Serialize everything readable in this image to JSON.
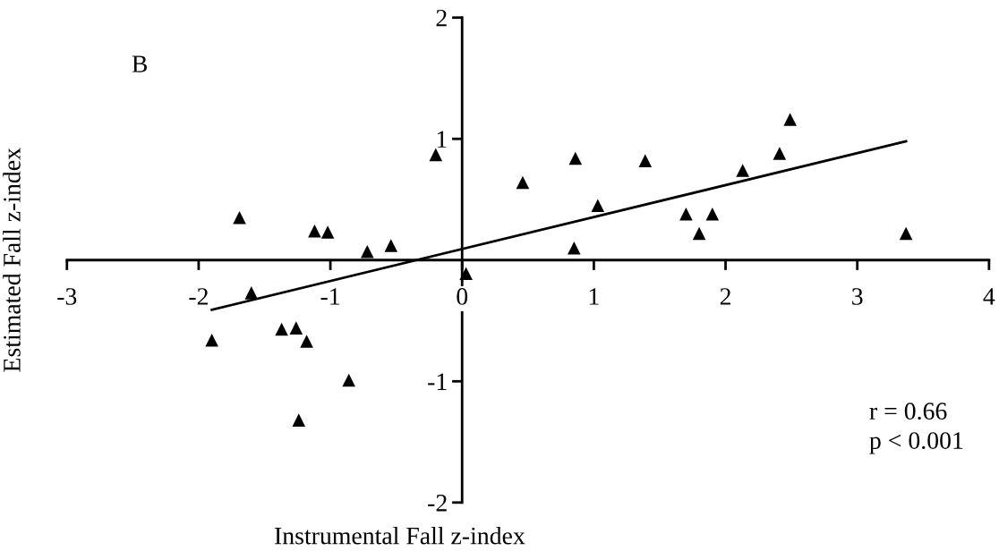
{
  "chart_data": {
    "type": "scatter",
    "xlabel": "Instrumental Fall z-index",
    "ylabel": "Estimated Fall z-index",
    "annotations": [
      "B",
      "r = 0.66\np < 0.001"
    ],
    "series": [
      {
        "color": "#000000",
        "marker": "triangle",
        "x": [
          -1.69,
          -1.12,
          -1.02,
          -0.72,
          -0.54,
          -0.2,
          0.46,
          0.85,
          0.03,
          -1.6,
          -1.9,
          -1.37,
          -1.26,
          -1.18,
          -0.86,
          -1.24,
          0.86,
          1.03,
          1.39,
          1.7,
          1.9,
          1.8,
          2.13,
          2.41,
          2.49,
          3.37
        ],
        "values": [
          0.35,
          0.24,
          0.23,
          0.07,
          0.12,
          0.87,
          0.64,
          0.1,
          -0.11,
          -0.27,
          -0.66,
          -0.57,
          -0.56,
          -0.67,
          -0.99,
          -1.32,
          0.84,
          0.45,
          0.82,
          0.38,
          0.38,
          0.22,
          0.74,
          0.88,
          1.16,
          0.22
        ]
      },
      {
        "type": "line",
        "color": "#000000",
        "x": [
          -1.9,
          3.37
        ],
        "values": [
          -0.41,
          0.98
        ]
      }
    ],
    "xlim": [
      -3,
      4
    ],
    "ylim": [
      -2,
      2
    ],
    "xticks": [
      -3,
      -2,
      -1,
      0,
      1,
      2,
      3,
      4
    ],
    "yticks": [
      -2,
      -1,
      1,
      2
    ],
    "grid": false,
    "legend": false
  }
}
